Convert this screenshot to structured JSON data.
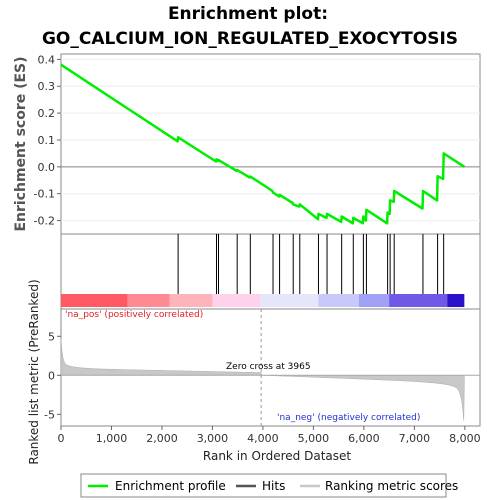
{
  "chart_data": {
    "type": "line",
    "title_line1": "Enrichment plot:",
    "title_line2": "GO_CALCIUM_ION_REGULATED_EXOCYTOSIS",
    "es_ylabel": "Enrichment score (ES)",
    "es_ylim": [
      -0.25,
      0.42
    ],
    "es_yticks": [
      -0.2,
      -0.1,
      0.0,
      0.1,
      0.2,
      0.3,
      0.4
    ],
    "es_ytick_labels": [
      "-0.2",
      "-0.1",
      "0.0",
      "0.1",
      "0.2",
      "0.3",
      "0.4"
    ],
    "xlim": [
      0,
      8300
    ],
    "xticks": [
      0,
      1000,
      2000,
      3000,
      4000,
      5000,
      6000,
      7000,
      8000
    ],
    "xtick_labels": [
      "0",
      "1,000",
      "2,000",
      "3,000",
      "4,000",
      "5,000",
      "6,000",
      "7,000",
      "8,000"
    ],
    "xlabel": "Rank in Ordered Dataset",
    "metric_ylabel": "Ranked list metric (PreRanked)",
    "metric_ylim": [
      -6.5,
      8.5
    ],
    "metric_yticks": [
      -5,
      0,
      5
    ],
    "metric_ytick_labels": [
      "-5",
      "0",
      "5"
    ],
    "zero_cross_label": "Zero cross at 3965",
    "zero_cross": 3965,
    "pos_label": "'na_pos' (positively correlated)",
    "neg_label": "'na_neg' (negatively correlated)",
    "hits": [
      2320,
      3080,
      3120,
      3490,
      3750,
      4200,
      4330,
      4600,
      4730,
      5100,
      5270,
      5560,
      5790,
      5990,
      6050,
      6470,
      6520,
      6600,
      7170,
      7460,
      7580
    ],
    "enrichment_profile": {
      "x": [
        0,
        2310,
        2320,
        3070,
        3080,
        3110,
        3120,
        3480,
        3490,
        3740,
        3750,
        4190,
        4200,
        4320,
        4330,
        4590,
        4600,
        4720,
        4730,
        5090,
        5100,
        5260,
        5270,
        5550,
        5560,
        5780,
        5790,
        5980,
        5990,
        6040,
        6050,
        6460,
        6470,
        6510,
        6520,
        6590,
        6600,
        7160,
        7170,
        7450,
        7460,
        7570,
        7580,
        7990
      ],
      "y": [
        0.38,
        0.095,
        0.11,
        0.02,
        0.028,
        0.022,
        0.025,
        -0.015,
        -0.012,
        -0.04,
        -0.036,
        -0.09,
        -0.096,
        -0.11,
        -0.104,
        -0.135,
        -0.14,
        -0.148,
        -0.14,
        -0.195,
        -0.175,
        -0.19,
        -0.175,
        -0.205,
        -0.185,
        -0.21,
        -0.19,
        -0.21,
        -0.185,
        -0.2,
        -0.16,
        -0.21,
        -0.17,
        -0.175,
        -0.125,
        -0.13,
        -0.09,
        -0.155,
        -0.09,
        -0.125,
        -0.035,
        -0.045,
        0.05,
        0.0
      ]
    },
    "legend": [
      "Enrichment profile",
      "Hits",
      "Ranking metric scores"
    ],
    "colors": {
      "profile": "#00ee00",
      "hits": "#000000",
      "metric_fill": "#c8c8c8",
      "zero_line": "#999999"
    },
    "heat_bands": [
      {
        "from": 0,
        "to": 1320,
        "color": "#ff5a64"
      },
      {
        "from": 1320,
        "to": 2150,
        "color": "#ff8a94"
      },
      {
        "from": 2150,
        "to": 3000,
        "color": "#ffb4bc"
      },
      {
        "from": 3000,
        "to": 3950,
        "color": "#ffd2ec"
      },
      {
        "from": 3950,
        "to": 5100,
        "color": "#e6e6fa"
      },
      {
        "from": 5100,
        "to": 5900,
        "color": "#c8c8fa"
      },
      {
        "from": 5900,
        "to": 6500,
        "color": "#a0a0f5"
      },
      {
        "from": 6500,
        "to": 7650,
        "color": "#6e5ae6"
      },
      {
        "from": 7650,
        "to": 7990,
        "color": "#2a10c8"
      }
    ]
  }
}
